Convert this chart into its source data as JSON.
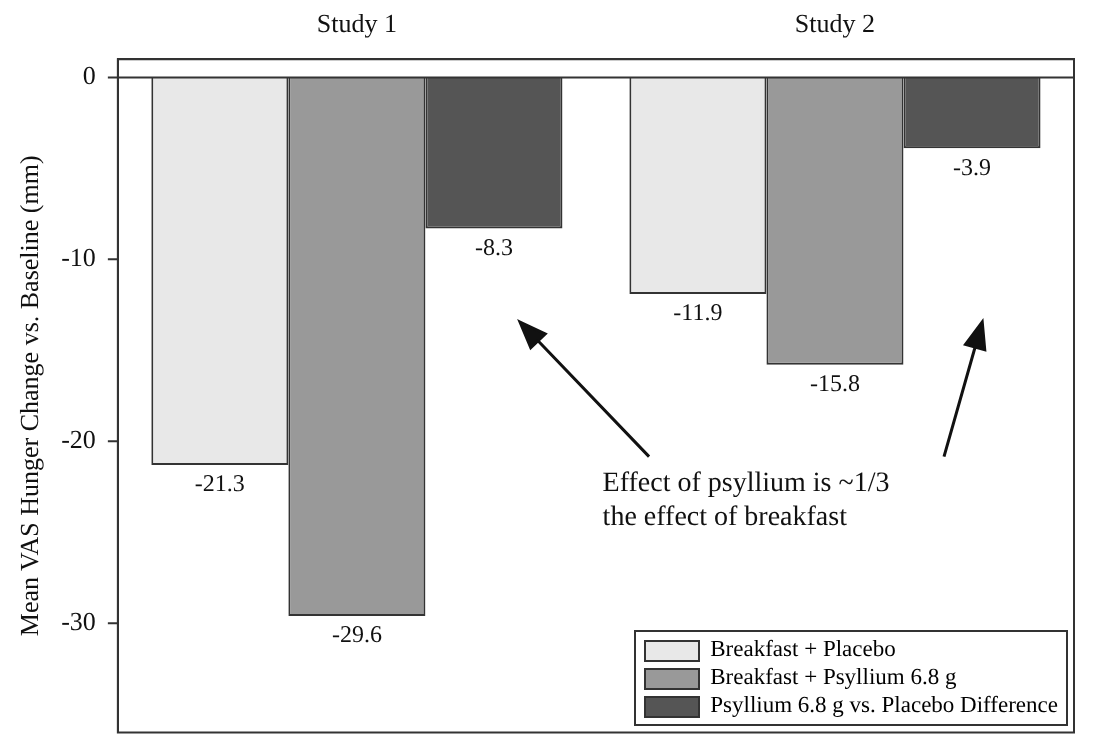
{
  "chart_data": {
    "type": "bar",
    "ylabel": "Mean VAS Hunger Change vs. Baseline (mm)",
    "categories": [
      "Study 1",
      "Study 2"
    ],
    "series": [
      {
        "name": "Breakfast + Placebo",
        "color": "#e8e8e8",
        "values": [
          -21.3,
          -11.9
        ]
      },
      {
        "name": "Breakfast + Psyllium 6.8 g",
        "color": "#999999",
        "values": [
          -29.6,
          -15.8
        ]
      },
      {
        "name": "Psyllium 6.8 g vs. Placebo Difference",
        "color": "#555555",
        "values": [
          -8.3,
          -3.9
        ]
      }
    ],
    "ylim": [
      -36,
      1
    ],
    "yticks": [
      0,
      -10,
      -20,
      -30
    ],
    "grid": false,
    "ref_lines": [
      {
        "axis": "y",
        "value": 0,
        "color": "#333333"
      }
    ],
    "legend": "bottom right",
    "data_labels": true,
    "annotations": [
      "Effect of psyllium is ~1/3\nthe effect of breakfast"
    ]
  }
}
